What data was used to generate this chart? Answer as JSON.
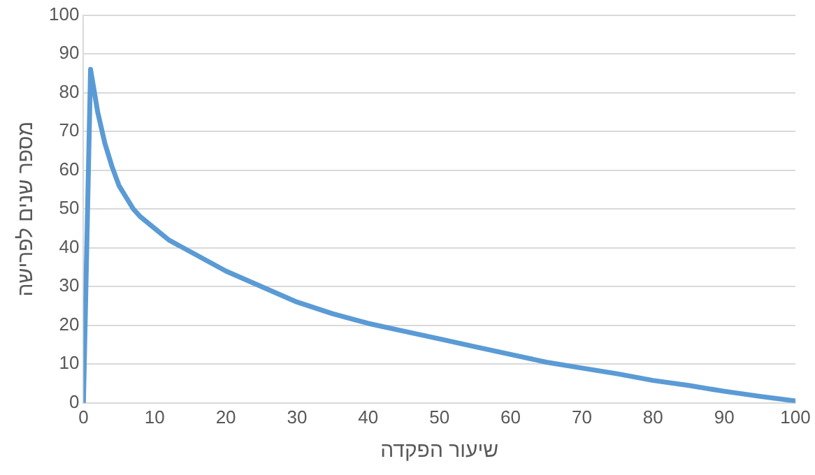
{
  "chart_data": {
    "type": "line",
    "xlabel": "שיעור הפקדה",
    "ylabel": "מספר שנים לפרישה",
    "x": [
      0,
      1,
      2,
      3,
      4,
      5,
      6,
      7,
      8,
      10,
      12,
      15,
      20,
      25,
      30,
      35,
      40,
      45,
      50,
      55,
      60,
      65,
      70,
      75,
      80,
      85,
      90,
      95,
      100
    ],
    "series": [
      {
        "color": "#5b9bd5",
        "values": [
          0,
          86,
          75,
          67,
          61,
          56,
          53,
          50,
          48,
          45,
          42,
          39,
          34,
          30,
          26,
          23,
          20.5,
          18.5,
          16.5,
          14.5,
          12.5,
          10.5,
          9,
          7.5,
          5.8,
          4.5,
          3,
          1.7,
          0.5
        ]
      }
    ],
    "xlim": [
      0,
      100
    ],
    "xticks": [
      0,
      10,
      20,
      30,
      40,
      50,
      60,
      70,
      80,
      90,
      100
    ],
    "ylim": [
      0,
      100
    ],
    "yticks": [
      0,
      10,
      20,
      30,
      40,
      50,
      60,
      70,
      80,
      90,
      100
    ],
    "grid": "y",
    "legend": false,
    "marker": "none",
    "line_style": "solid"
  }
}
